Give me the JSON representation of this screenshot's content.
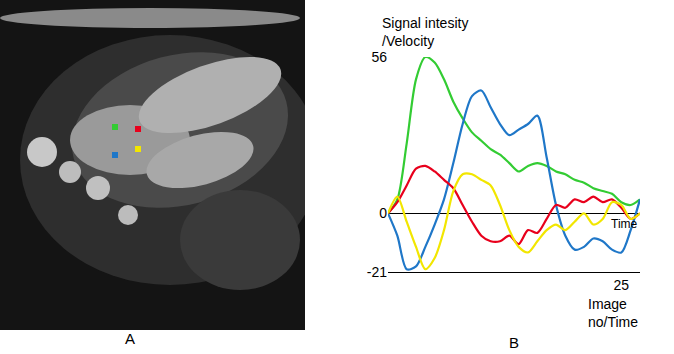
{
  "panel_labels": [
    "A",
    "B"
  ],
  "chart_data": {
    "type": "line",
    "xlabel": "Image no/Time",
    "ylabel": "Signal intesity /Velocity",
    "annotations": [
      "Time"
    ],
    "x": [
      0,
      1,
      2,
      3,
      4,
      5,
      6,
      7,
      8,
      9,
      10,
      11,
      12,
      13,
      14,
      15,
      16,
      17,
      18,
      19,
      20,
      21,
      22,
      23,
      24,
      25,
      26,
      27
    ],
    "series": [
      {
        "color": "#33cc33",
        "values": [
          0,
          5,
          25,
          48,
          56,
          54,
          48,
          40,
          34,
          29,
          26,
          23,
          21,
          18,
          15,
          17,
          18,
          17,
          15,
          14,
          12,
          11,
          9,
          8,
          7,
          4,
          3,
          5
        ]
      },
      {
        "color": "#1f77c8",
        "values": [
          0,
          -8,
          -20,
          -19,
          -12,
          -4,
          5,
          18,
          32,
          42,
          44,
          38,
          32,
          28,
          30,
          32,
          35,
          20,
          3,
          -8,
          -13,
          -12,
          -9,
          -10,
          -13,
          -14,
          -6,
          5
        ]
      },
      {
        "color": "#e8001c",
        "values": [
          0,
          4,
          10,
          16,
          17,
          15,
          12,
          9,
          3,
          -3,
          -8,
          -10,
          -10,
          -8,
          -11,
          -6,
          -7,
          -2,
          3,
          2,
          5,
          4,
          6,
          4,
          5,
          2,
          -2,
          0
        ]
      },
      {
        "color": "#f2e600",
        "values": [
          0,
          6,
          -3,
          -12,
          -20,
          -16,
          -6,
          8,
          14,
          14,
          12,
          10,
          3,
          -6,
          -12,
          -14,
          -10,
          -6,
          -4,
          -6,
          -3,
          0,
          -4,
          -2,
          4,
          3,
          -2,
          0
        ]
      }
    ],
    "xlim": [
      0,
      27
    ],
    "ylim": [
      -21,
      56
    ],
    "xticks": [
      25
    ],
    "yticks": [
      56,
      0,
      -21
    ],
    "grid": false
  }
}
